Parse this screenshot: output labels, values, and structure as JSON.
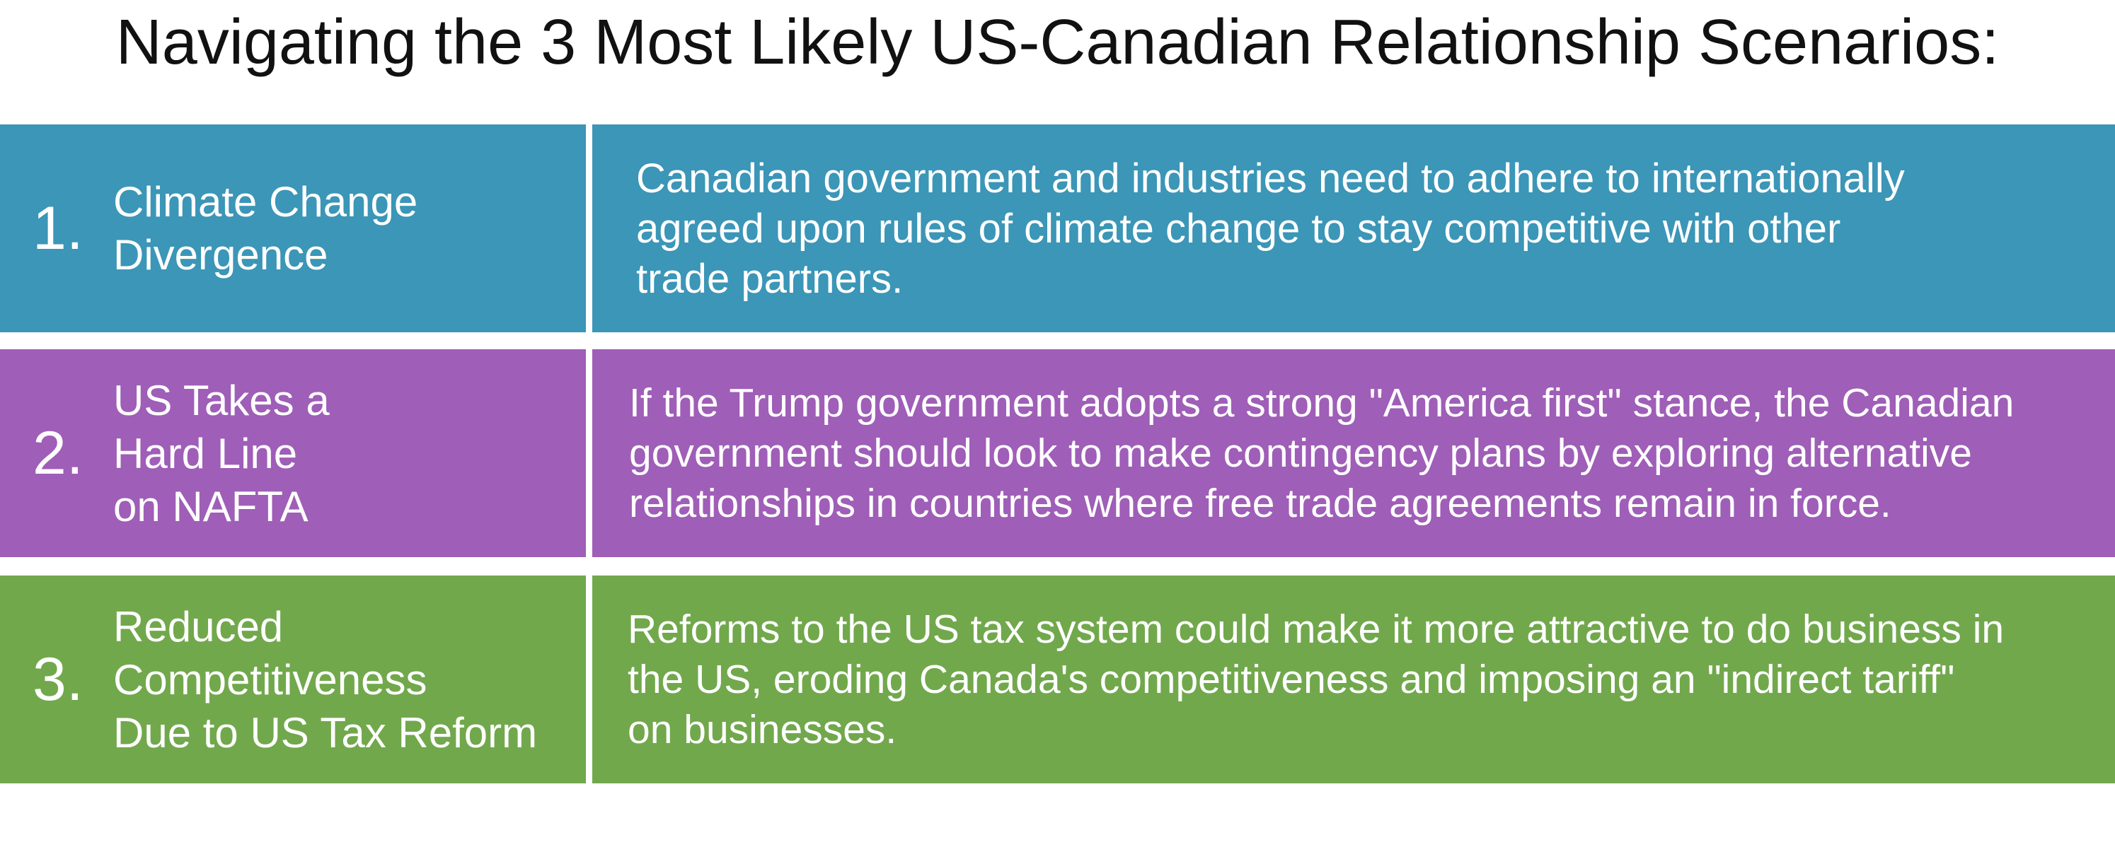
{
  "title": "Navigating the 3 Most Likely US-Canadian Relationship Scenarios:",
  "colors": {
    "row_1": "#3b96b7",
    "row_2": "#9f5eb7",
    "row_3": "#71a84c",
    "text": "#ffffff"
  },
  "scenarios": [
    {
      "number": "1.",
      "topic": "Climate Change\nDivergence",
      "description": "Canadian government and industries need to adhere to internationally\nagreed upon rules of climate change to stay competitive with other\ntrade partners."
    },
    {
      "number": "2.",
      "topic": "US Takes a\nHard Line\non NAFTA",
      "description": "If the Trump government adopts a strong \"America first\" stance, the Canadian\ngovernment should look to make contingency plans by exploring alternative\nrelationships in countries where free trade agreements remain in force."
    },
    {
      "number": "3.",
      "topic": "Reduced\nCompetitiveness\nDue to US Tax Reform",
      "description": "Reforms to the US tax system could make it more attractive to do business in\nthe US,  eroding Canada's competitiveness and imposing an  \"indirect tariff\"\non businesses."
    }
  ]
}
